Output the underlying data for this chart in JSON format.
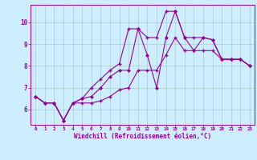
{
  "xlabel": "Windchill (Refroidissement éolien,°C)",
  "background_color": "#cceeff",
  "line_color": "#990099",
  "grid_color": "#aacccc",
  "x": [
    0,
    1,
    2,
    3,
    4,
    5,
    6,
    7,
    8,
    9,
    10,
    11,
    12,
    13,
    14,
    15,
    16,
    17,
    18,
    19,
    20,
    21,
    22,
    23
  ],
  "y_main": [
    6.6,
    6.3,
    6.3,
    5.5,
    6.3,
    6.5,
    6.6,
    7.0,
    7.5,
    7.8,
    7.8,
    9.7,
    8.5,
    7.0,
    9.3,
    10.5,
    9.3,
    8.7,
    9.3,
    9.2,
    8.3,
    8.3,
    8.3,
    8.0
  ],
  "y_upper": [
    6.6,
    6.3,
    6.3,
    5.5,
    6.3,
    6.5,
    7.0,
    7.4,
    7.8,
    8.1,
    9.7,
    9.7,
    9.3,
    9.3,
    10.5,
    10.5,
    9.3,
    9.3,
    9.3,
    9.2,
    8.3,
    8.3,
    8.3,
    8.0
  ],
  "y_lower": [
    6.6,
    6.3,
    6.3,
    5.5,
    6.3,
    6.3,
    6.3,
    6.4,
    6.6,
    6.9,
    7.0,
    7.8,
    7.8,
    7.8,
    8.5,
    9.3,
    8.7,
    8.7,
    8.7,
    8.7,
    8.3,
    8.3,
    8.3,
    8.0
  ],
  "ylim": [
    5.3,
    10.8
  ],
  "xlim": [
    -0.5,
    23.5
  ],
  "yticks": [
    6,
    7,
    8,
    9,
    10
  ],
  "xticks": [
    0,
    1,
    2,
    3,
    4,
    5,
    6,
    7,
    8,
    9,
    10,
    11,
    12,
    13,
    14,
    15,
    16,
    17,
    18,
    19,
    20,
    21,
    22,
    23
  ]
}
